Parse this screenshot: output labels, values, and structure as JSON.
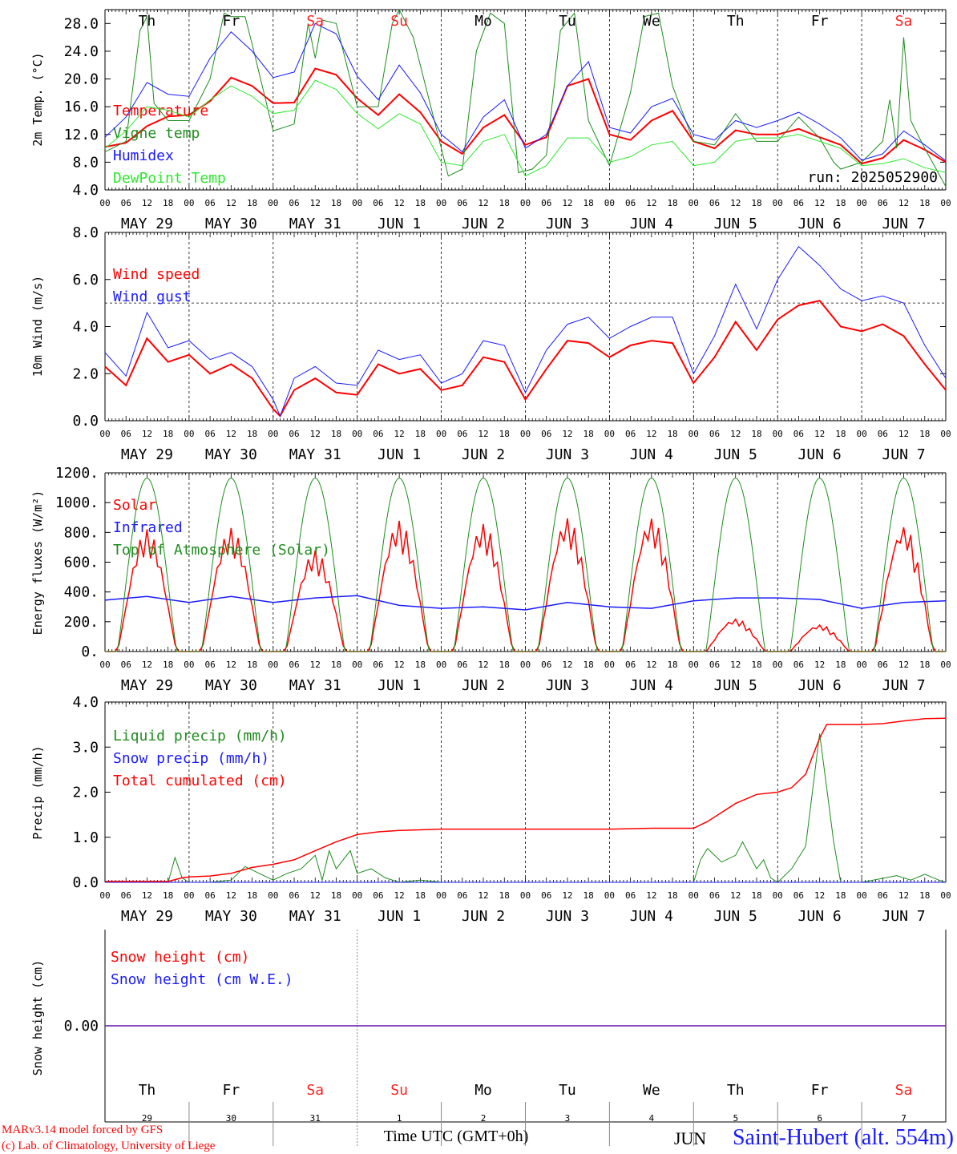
{
  "footer": {
    "model_line1": "MARv3.14 model forced by GFS",
    "model_line2": "(c) Lab. of Climatology, University of Liege",
    "xaxis_title": "Time UTC (GMT+0h)",
    "station": "Saint-Hubert (alt. 554m)",
    "month_overlay": "JUN"
  },
  "colors": {
    "red": "#ff0000",
    "green": "#1e8c1e",
    "blue": "#1a1aff",
    "lightgreen": "#2ee82e",
    "weekend": "#ff2020"
  },
  "days": [
    {
      "dow": "Th",
      "date": "MAY 29",
      "num": "29",
      "weekend": false
    },
    {
      "dow": "Fr",
      "date": "MAY 30",
      "num": "30",
      "weekend": false
    },
    {
      "dow": "Sa",
      "date": "MAY 31",
      "num": "31",
      "weekend": true
    },
    {
      "dow": "Su",
      "date": "JUN  1",
      "num": "1",
      "weekend": true
    },
    {
      "dow": "Mo",
      "date": "JUN  2",
      "num": "2",
      "weekend": false
    },
    {
      "dow": "Tu",
      "date": "JUN  3",
      "num": "3",
      "weekend": false
    },
    {
      "dow": "We",
      "date": "JUN  4",
      "num": "4",
      "weekend": false
    },
    {
      "dow": "Th",
      "date": "JUN  5",
      "num": "5",
      "weekend": false
    },
    {
      "dow": "Fr",
      "date": "JUN  6",
      "num": "6",
      "weekend": false
    },
    {
      "dow": "Sa",
      "date": "JUN  7",
      "num": "7",
      "weekend": true
    }
  ],
  "hour_ticks": [
    "00",
    "06",
    "12",
    "18"
  ],
  "chart_data": [
    {
      "type": "line",
      "id": "temp",
      "ylabel": "2m Temp. (°C)",
      "ylim": [
        4.0,
        30.0
      ],
      "yticks": [
        "4.0",
        "8.0",
        "12.0",
        "16.0",
        "20.0",
        "24.0",
        "28.0"
      ],
      "ytick_values": [
        4,
        8,
        12,
        16,
        20,
        24,
        28
      ],
      "x_unit": "hours since MAY 29 00 UTC",
      "run_label": "run: 2025052900",
      "series": [
        {
          "name": "Temperature",
          "color": "red",
          "width": 2,
          "x": [
            0,
            6,
            12,
            18,
            24,
            30,
            36,
            42,
            48,
            54,
            60,
            66,
            72,
            78,
            84,
            90,
            96,
            102,
            108,
            114,
            120,
            126,
            132,
            138,
            144,
            150,
            156,
            162,
            168,
            174,
            180,
            186,
            192,
            198,
            204,
            210,
            216,
            222,
            228,
            234,
            240
          ],
          "y": [
            10.2,
            10.8,
            13.2,
            14.6,
            14.8,
            16.8,
            20.2,
            19.0,
            16.5,
            16.6,
            21.5,
            20.6,
            17.2,
            14.8,
            17.8,
            15.2,
            11.0,
            9.2,
            13.0,
            14.8,
            10.5,
            11.6,
            19.0,
            20.0,
            12.0,
            11.2,
            14.0,
            15.4,
            11.0,
            10.0,
            12.6,
            12.0,
            12.0,
            12.8,
            11.6,
            10.5,
            7.8,
            8.6,
            11.2,
            9.8,
            8.0
          ]
        },
        {
          "name": "Vigne temp",
          "color": "green",
          "width": 1,
          "x": [
            0,
            6,
            10,
            12,
            14,
            18,
            24,
            30,
            34,
            36,
            40,
            42,
            48,
            54,
            58,
            60,
            62,
            66,
            72,
            78,
            82,
            84,
            88,
            94,
            98,
            102,
            106,
            110,
            114,
            118,
            122,
            126,
            130,
            134,
            138,
            144,
            150,
            154,
            158,
            162,
            168,
            174,
            180,
            186,
            192,
            198,
            204,
            208,
            210,
            216,
            222,
            224,
            226,
            228,
            230,
            234,
            240
          ],
          "y": [
            9.5,
            11.0,
            27.0,
            29.0,
            16.5,
            14.0,
            14.0,
            20.0,
            29.5,
            29.0,
            29.0,
            25.0,
            12.5,
            13.5,
            28.0,
            23.0,
            28.5,
            28.0,
            16.0,
            16.0,
            28.0,
            30.0,
            26.0,
            14.0,
            6.0,
            7.0,
            24.0,
            29.5,
            28.0,
            6.5,
            7.0,
            9.0,
            27.0,
            29.5,
            14.0,
            7.5,
            18.0,
            29.0,
            29.5,
            19.0,
            11.0,
            10.5,
            15.0,
            11.0,
            11.0,
            14.5,
            11.5,
            8.0,
            7.0,
            8.0,
            11.0,
            17.0,
            10.0,
            26.0,
            14.0,
            10.0,
            4.5
          ]
        },
        {
          "name": "Humidex",
          "color": "blue",
          "width": 1,
          "x": [
            0,
            6,
            12,
            18,
            24,
            30,
            36,
            42,
            48,
            54,
            60,
            66,
            72,
            78,
            84,
            90,
            96,
            102,
            108,
            114,
            120,
            126,
            132,
            138,
            144,
            150,
            156,
            162,
            168,
            174,
            180,
            186,
            192,
            198,
            204,
            210,
            216,
            222,
            228,
            234,
            240
          ],
          "y": [
            11.6,
            14.5,
            19.5,
            17.8,
            17.5,
            23.0,
            26.8,
            24.0,
            20.2,
            21.0,
            28.0,
            26.5,
            20.4,
            17.0,
            22.0,
            18.0,
            12.0,
            9.5,
            14.5,
            17.0,
            10.0,
            12.0,
            19.0,
            22.5,
            13.0,
            12.2,
            16.0,
            17.2,
            12.0,
            11.2,
            14.0,
            13.0,
            14.0,
            15.2,
            13.5,
            11.5,
            8.3,
            9.2,
            12.5,
            10.5,
            8.2
          ]
        },
        {
          "name": "DewPoint Temp",
          "color": "lightgreen",
          "width": 1,
          "x": [
            0,
            6,
            12,
            18,
            24,
            30,
            36,
            42,
            48,
            54,
            60,
            66,
            72,
            78,
            84,
            90,
            96,
            102,
            108,
            114,
            120,
            126,
            132,
            138,
            144,
            150,
            156,
            162,
            168,
            174,
            180,
            186,
            192,
            198,
            204,
            210,
            216,
            222,
            228,
            234,
            240
          ],
          "y": [
            10.0,
            12.5,
            16.0,
            15.5,
            14.5,
            17.0,
            19.0,
            17.5,
            15.0,
            15.5,
            19.8,
            18.5,
            15.0,
            12.8,
            15.0,
            13.5,
            8.0,
            7.5,
            11.0,
            12.0,
            6.0,
            7.5,
            11.5,
            11.5,
            8.0,
            8.8,
            10.5,
            11.0,
            7.5,
            8.0,
            11.0,
            11.5,
            11.5,
            12.0,
            11.0,
            10.0,
            7.5,
            7.8,
            8.5,
            7.2,
            6.5
          ]
        }
      ]
    },
    {
      "type": "line",
      "id": "wind",
      "ylabel": "10m Wind (m/s)",
      "ylim": [
        0.0,
        8.0
      ],
      "yticks": [
        "0.0",
        "2.0",
        "4.0",
        "6.0",
        "8.0"
      ],
      "ytick_values": [
        0,
        2,
        4,
        6,
        8
      ],
      "reference_y": 5.0,
      "x_unit": "hours since MAY 29 00 UTC",
      "series": [
        {
          "name": "Wind speed",
          "color": "red",
          "width": 2,
          "x": [
            0,
            6,
            12,
            18,
            24,
            30,
            36,
            42,
            48,
            50,
            54,
            60,
            66,
            72,
            78,
            84,
            90,
            96,
            102,
            108,
            114,
            120,
            126,
            132,
            138,
            144,
            150,
            156,
            162,
            168,
            174,
            180,
            186,
            192,
            198,
            204,
            210,
            216,
            222,
            228,
            234,
            240
          ],
          "y": [
            2.3,
            1.5,
            3.5,
            2.5,
            2.8,
            2.0,
            2.4,
            1.8,
            0.5,
            0.2,
            1.3,
            1.8,
            1.2,
            1.1,
            2.4,
            2.0,
            2.2,
            1.3,
            1.5,
            2.7,
            2.5,
            0.9,
            2.2,
            3.4,
            3.3,
            2.7,
            3.2,
            3.4,
            3.3,
            1.6,
            2.7,
            4.2,
            3.0,
            4.3,
            4.9,
            5.1,
            4.0,
            3.8,
            4.1,
            3.6,
            2.4,
            1.3
          ]
        },
        {
          "name": "Wind gust",
          "color": "blue",
          "width": 1,
          "x": [
            0,
            6,
            12,
            18,
            24,
            30,
            36,
            42,
            48,
            50,
            54,
            60,
            66,
            72,
            78,
            84,
            90,
            96,
            102,
            108,
            114,
            120,
            126,
            132,
            138,
            144,
            150,
            156,
            162,
            168,
            174,
            180,
            186,
            192,
            198,
            204,
            210,
            216,
            222,
            228,
            234,
            240
          ],
          "y": [
            2.9,
            1.9,
            4.6,
            3.1,
            3.4,
            2.6,
            2.9,
            2.3,
            0.9,
            0.2,
            1.8,
            2.3,
            1.6,
            1.5,
            3.0,
            2.6,
            2.8,
            1.6,
            2.0,
            3.4,
            3.2,
            1.2,
            3.0,
            4.1,
            4.4,
            3.5,
            4.0,
            4.4,
            4.4,
            2.0,
            3.6,
            5.8,
            3.9,
            6.0,
            7.4,
            6.6,
            5.6,
            5.1,
            5.3,
            5.0,
            3.2,
            1.8
          ]
        }
      ]
    },
    {
      "type": "line",
      "id": "energy",
      "ylabel": "Energy fluxes (W/m²)",
      "ylim": [
        0,
        1200
      ],
      "yticks": [
        "0.",
        "200.",
        "400.",
        "600.",
        "800.",
        "1000.",
        "1200."
      ],
      "ytick_values": [
        0,
        200,
        400,
        600,
        800,
        1000,
        1200
      ],
      "x_unit": "hours since MAY 29 00 UTC",
      "series": [
        {
          "name": "Solar",
          "color": "red",
          "width": 1.5,
          "day_peaks": [
            820,
            830,
            680,
            880,
            860,
            900,
            900,
            220,
            180,
            850
          ]
        },
        {
          "name": "Infrared",
          "color": "blue",
          "width": 1.5,
          "x": [
            0,
            12,
            24,
            36,
            48,
            60,
            72,
            84,
            96,
            108,
            120,
            132,
            144,
            156,
            168,
            180,
            192,
            204,
            216,
            228,
            240
          ],
          "y": [
            345,
            370,
            330,
            370,
            330,
            360,
            375,
            310,
            290,
            300,
            280,
            330,
            300,
            290,
            340,
            360,
            360,
            350,
            290,
            330,
            340
          ]
        },
        {
          "name": "Top of Atmosphere (Solar)",
          "color": "green",
          "width": 1,
          "peak": 1165
        }
      ]
    },
    {
      "type": "line",
      "id": "precip",
      "ylabel": "Precip (mm/h)",
      "ylim": [
        0.0,
        4.0
      ],
      "yticks": [
        "0.0",
        "1.0",
        "2.0",
        "3.0",
        "4.0"
      ],
      "ytick_values": [
        0,
        1,
        2,
        3,
        4
      ],
      "x_unit": "hours since MAY 29 00 UTC",
      "series": [
        {
          "name": "Liquid precip (mm/h)",
          "color": "green",
          "width": 1,
          "x": [
            0,
            18,
            20,
            22,
            24,
            30,
            36,
            40,
            44,
            48,
            52,
            56,
            60,
            62,
            64,
            66,
            70,
            72,
            76,
            80,
            84,
            90,
            96,
            168,
            170,
            172,
            176,
            180,
            182,
            186,
            188,
            190,
            192,
            196,
            200,
            204,
            206,
            208,
            210,
            214,
            216,
            226,
            230,
            234,
            238,
            240
          ],
          "y": [
            0,
            0,
            0.55,
            0.1,
            0,
            0,
            0.05,
            0.35,
            0.2,
            0.05,
            0.2,
            0.3,
            0.6,
            0.05,
            0.7,
            0.3,
            0.7,
            0.2,
            0.3,
            0.1,
            0,
            0.05,
            0,
            0,
            0.5,
            0.75,
            0.45,
            0.6,
            0.9,
            0.3,
            0.5,
            0.1,
            0,
            0.3,
            0.8,
            3.3,
            2.1,
            0.9,
            0,
            0,
            0,
            0.15,
            0.05,
            0.18,
            0.05,
            0
          ]
        },
        {
          "name": "Snow precip (mm/h)",
          "color": "blue",
          "width": 1,
          "x": [
            0,
            240
          ],
          "y": [
            0,
            0
          ]
        },
        {
          "name": "Total cumulated (cm)",
          "color": "red",
          "width": 1.5,
          "x": [
            0,
            18,
            22,
            24,
            30,
            36,
            42,
            48,
            54,
            60,
            66,
            72,
            78,
            84,
            96,
            120,
            144,
            156,
            168,
            172,
            180,
            186,
            192,
            196,
            200,
            202,
            204,
            206,
            210,
            216,
            222,
            228,
            234,
            240
          ],
          "y": [
            0.02,
            0.02,
            0.1,
            0.12,
            0.14,
            0.2,
            0.33,
            0.4,
            0.5,
            0.7,
            0.9,
            1.06,
            1.12,
            1.15,
            1.18,
            1.18,
            1.18,
            1.2,
            1.2,
            1.35,
            1.75,
            1.95,
            2.0,
            2.1,
            2.4,
            2.8,
            3.2,
            3.5,
            3.5,
            3.5,
            3.52,
            3.58,
            3.63,
            3.64
          ]
        }
      ]
    },
    {
      "type": "line",
      "id": "snow",
      "ylabel": "Snow height (cm)",
      "ylim": [
        -1,
        1
      ],
      "yticks": [
        "0.00"
      ],
      "ytick_values": [
        0
      ],
      "x_unit": "hours since MAY 29 00 UTC",
      "series": [
        {
          "name": "Snow height (cm)",
          "color": "red",
          "width": 1.5,
          "x": [
            0,
            240
          ],
          "y": [
            0,
            0
          ]
        },
        {
          "name": "Snow height (cm W.E.)",
          "color": "blue",
          "width": 1,
          "x": [
            0,
            240
          ],
          "y": [
            0,
            0
          ]
        }
      ]
    }
  ]
}
